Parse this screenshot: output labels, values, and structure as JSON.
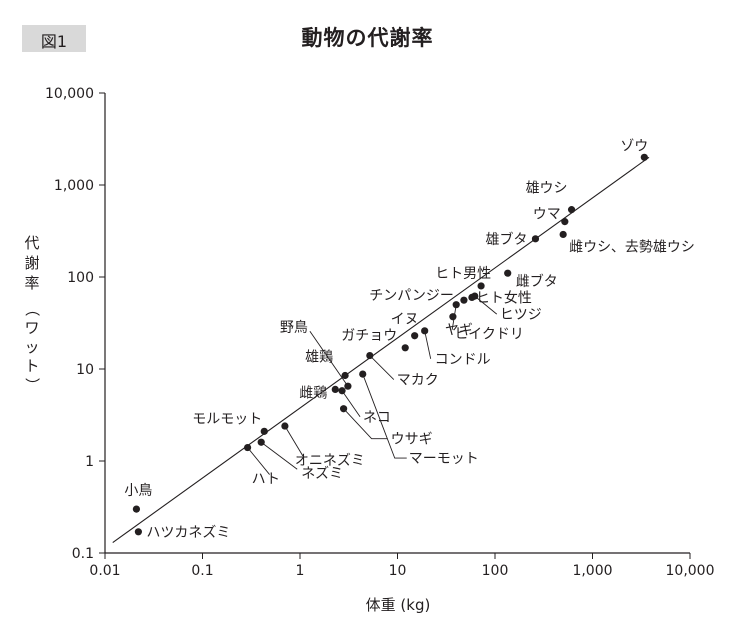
{
  "figure": {
    "badge": "図1"
  },
  "chart_data": {
    "type": "scatter",
    "title": "動物の代謝率",
    "xlabel": "体重 (kg)",
    "ylabel_main": "代謝率",
    "ylabel_unit": "（ワット）",
    "x_scale": "log",
    "y_scale": "log",
    "xlim": [
      0.01,
      10000
    ],
    "ylim": [
      0.1,
      10000
    ],
    "grid": false,
    "legend": "none",
    "x_ticks": [
      {
        "value": 0.01,
        "label": "0.01"
      },
      {
        "value": 0.1,
        "label": "0.1"
      },
      {
        "value": 1,
        "label": "1"
      },
      {
        "value": 10,
        "label": "10"
      },
      {
        "value": 100,
        "label": "100"
      },
      {
        "value": 1000,
        "label": "1,000"
      },
      {
        "value": 10000,
        "label": "10,000"
      }
    ],
    "y_ticks": [
      {
        "value": 0.1,
        "label": "0.1"
      },
      {
        "value": 1,
        "label": "1"
      },
      {
        "value": 10,
        "label": "10"
      },
      {
        "value": 100,
        "label": "100"
      },
      {
        "value": 1000,
        "label": "1,000"
      },
      {
        "value": 10000,
        "label": "10,000"
      }
    ],
    "fit_line": {
      "x": [
        0.012,
        3800
      ],
      "y": [
        0.13,
        2000
      ]
    },
    "points": [
      {
        "label": "小鳥",
        "x": 0.021,
        "y": 0.3
      },
      {
        "label": "ハツカネズミ",
        "x": 0.022,
        "y": 0.17
      },
      {
        "label": "ハト",
        "x": 0.29,
        "y": 1.4
      },
      {
        "label": "ネズミ",
        "x": 0.4,
        "y": 1.6
      },
      {
        "label": "モルモット",
        "x": 0.43,
        "y": 2.1
      },
      {
        "label": "オニネズミ",
        "x": 0.7,
        "y": 2.4
      },
      {
        "label": "雄鶏",
        "x": 2.9,
        "y": 8.5
      },
      {
        "label": "雌鶏",
        "x": 2.3,
        "y": 6.0
      },
      {
        "label": "野鳥",
        "x": 3.1,
        "y": 6.5
      },
      {
        "label": "ネコ",
        "x": 2.7,
        "y": 5.8
      },
      {
        "label": "ウサギ",
        "x": 2.8,
        "y": 3.7
      },
      {
        "label": "マーモット",
        "x": 4.4,
        "y": 8.8
      },
      {
        "label": "マカク",
        "x": 5.2,
        "y": 14
      },
      {
        "label": "ガチョウ",
        "x": 12,
        "y": 17
      },
      {
        "label": "イヌ",
        "x": 15,
        "y": 23
      },
      {
        "label": "コンドル",
        "x": 19,
        "y": 26
      },
      {
        "label": "ヤギ",
        "x": 37,
        "y": 37
      },
      {
        "label": "ヒイクドリ",
        "x": 40,
        "y": 50
      },
      {
        "label": "チンパンジー",
        "x": 48,
        "y": 56
      },
      {
        "label": "ヒツジ",
        "x": 62,
        "y": 62
      },
      {
        "label": "ヒト女性",
        "x": 58,
        "y": 60
      },
      {
        "label": "ヒト男性",
        "x": 72,
        "y": 80
      },
      {
        "label": "雌ブタ",
        "x": 135,
        "y": 110
      },
      {
        "label": "雄ブタ",
        "x": 260,
        "y": 260
      },
      {
        "label": "雄ウシ",
        "x": 610,
        "y": 540
      },
      {
        "label": "ウマ",
        "x": 520,
        "y": 400
      },
      {
        "label": "雌ウシ、去勢雄ウシ",
        "x": 500,
        "y": 290
      },
      {
        "label": "ゾウ",
        "x": 3400,
        "y": 2000
      }
    ]
  }
}
